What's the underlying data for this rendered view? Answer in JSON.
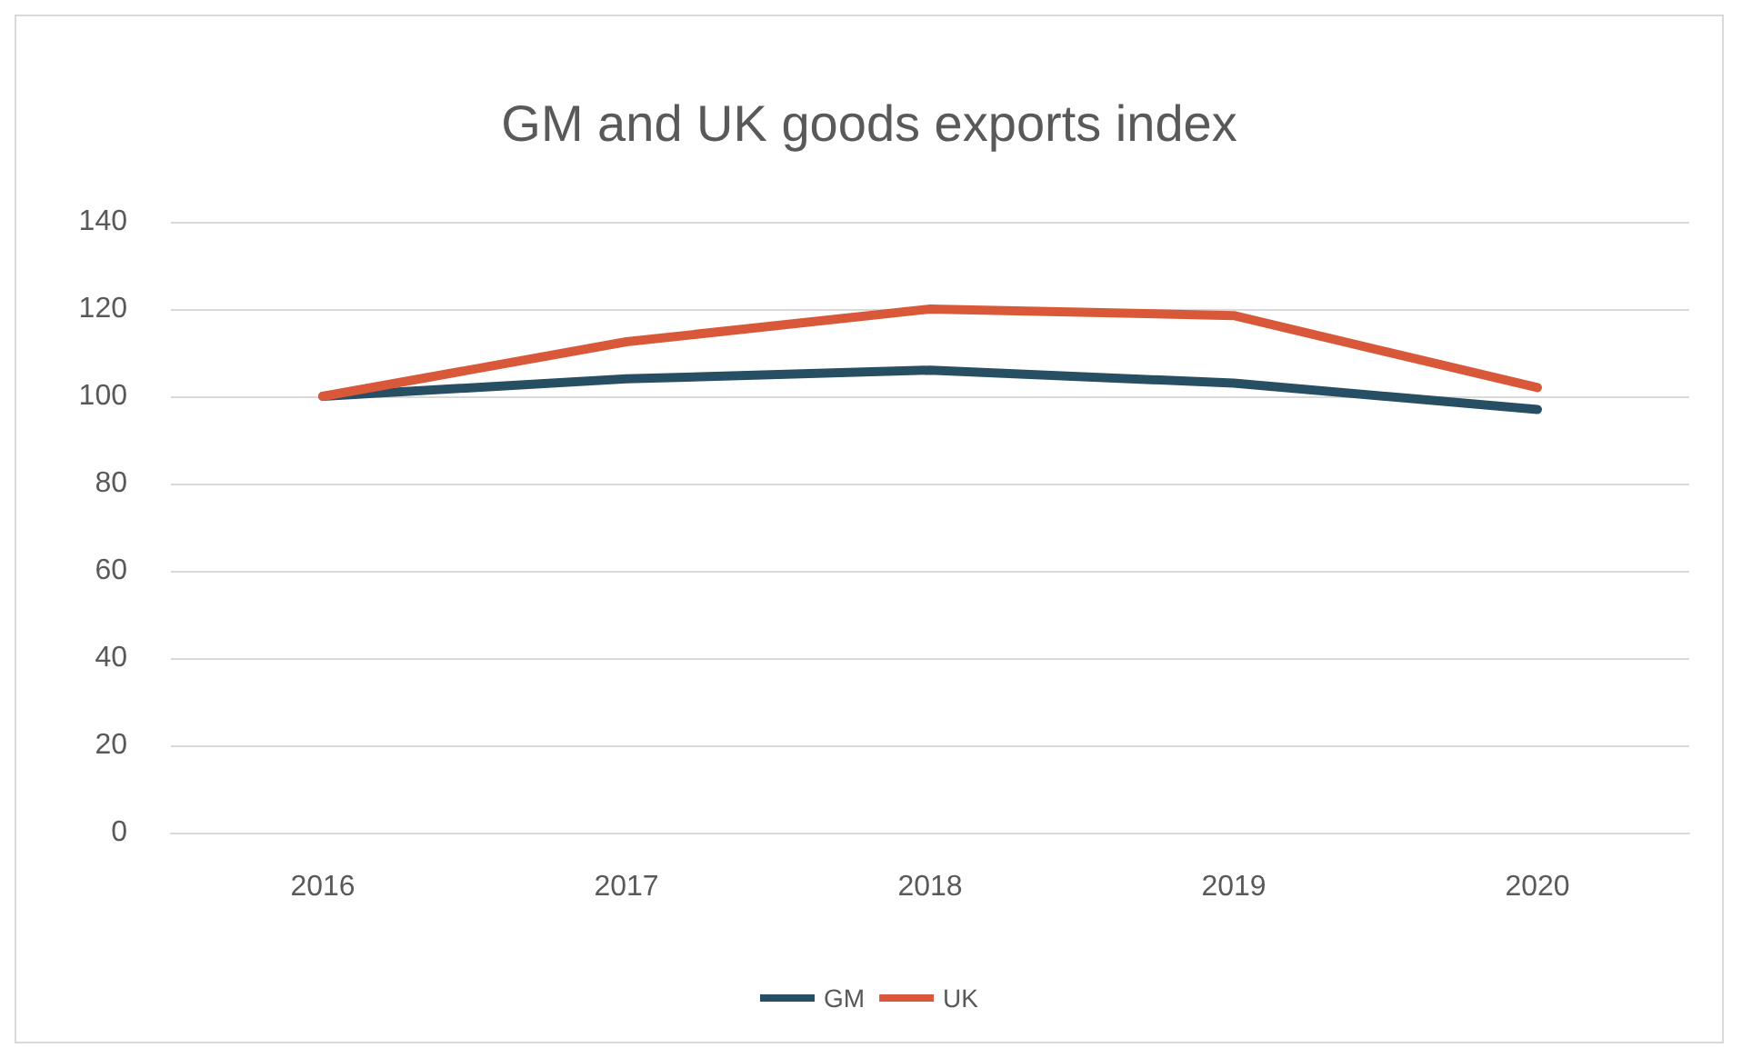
{
  "chart_data": {
    "type": "line",
    "title": "GM and UK goods exports index",
    "categories": [
      "2016",
      "2017",
      "2018",
      "2019",
      "2020"
    ],
    "series": [
      {
        "name": "GM",
        "color": "#264f63",
        "values": [
          100,
          104,
          106,
          103,
          97
        ]
      },
      {
        "name": "UK",
        "color": "#d9583a",
        "values": [
          100,
          112.5,
          120,
          118.5,
          102
        ]
      }
    ],
    "ylim": [
      0,
      140
    ],
    "yticks": [
      0,
      20,
      40,
      60,
      80,
      100,
      120,
      140
    ],
    "grid": "y",
    "legend": "bottom",
    "marker": "none",
    "line_style": "solid"
  }
}
